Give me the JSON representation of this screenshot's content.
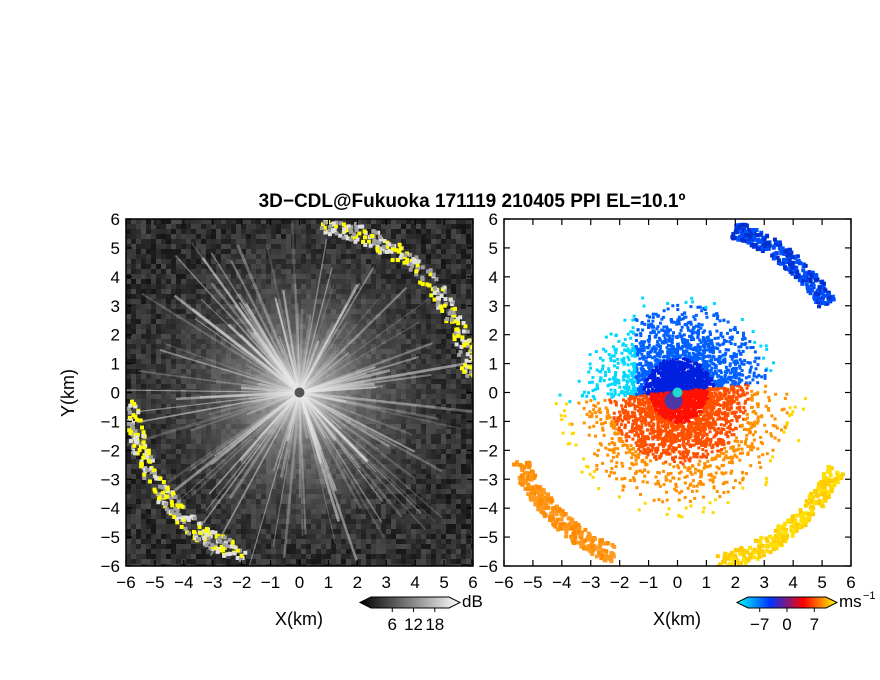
{
  "title": "3D−CDL@Fukuoka 171119 210405 PPI EL=10.1º",
  "chart_data": [
    {
      "type": "heatmap",
      "name": "reflectivity-ppi",
      "xlabel": "X(km)",
      "ylabel": "Y(km)",
      "xlim": [
        -6,
        6
      ],
      "ylim": [
        -6,
        6
      ],
      "xticks": [
        "−6",
        "−5",
        "−4",
        "−3",
        "−2",
        "−1",
        "0",
        "1",
        "2",
        "3",
        "4",
        "5",
        "6"
      ],
      "yticks": [
        "6",
        "5",
        "4",
        "3",
        "2",
        "1",
        "0",
        "−1",
        "−2",
        "−3",
        "−4",
        "−5",
        "−6"
      ],
      "colorbar": {
        "unit": "dB",
        "ticks": [
          "6",
          "12",
          "18"
        ],
        "range": [
          0,
          22
        ],
        "colors": [
          "#000000",
          "#ffffff"
        ]
      }
    },
    {
      "type": "heatmap",
      "name": "doppler-velocity-ppi",
      "xlabel": "X(km)",
      "xlim": [
        -6,
        6
      ],
      "ylim": [
        -6,
        6
      ],
      "xticks": [
        "−6",
        "−5",
        "−4",
        "−3",
        "−2",
        "−1",
        "0",
        "1",
        "2",
        "3",
        "4",
        "5",
        "6"
      ],
      "yticks": [
        "6",
        "5",
        "4",
        "3",
        "2",
        "1",
        "0",
        "−1",
        "−2",
        "−3",
        "−4",
        "−5",
        "−6"
      ],
      "colorbar": {
        "unit": "ms",
        "unit_exp": "−1",
        "ticks": [
          "−7",
          "0",
          "7"
        ],
        "range": [
          -10,
          10
        ],
        "colors": [
          "#00ffff",
          "#0033ff",
          "#ff0000",
          "#ffff00"
        ]
      }
    }
  ]
}
